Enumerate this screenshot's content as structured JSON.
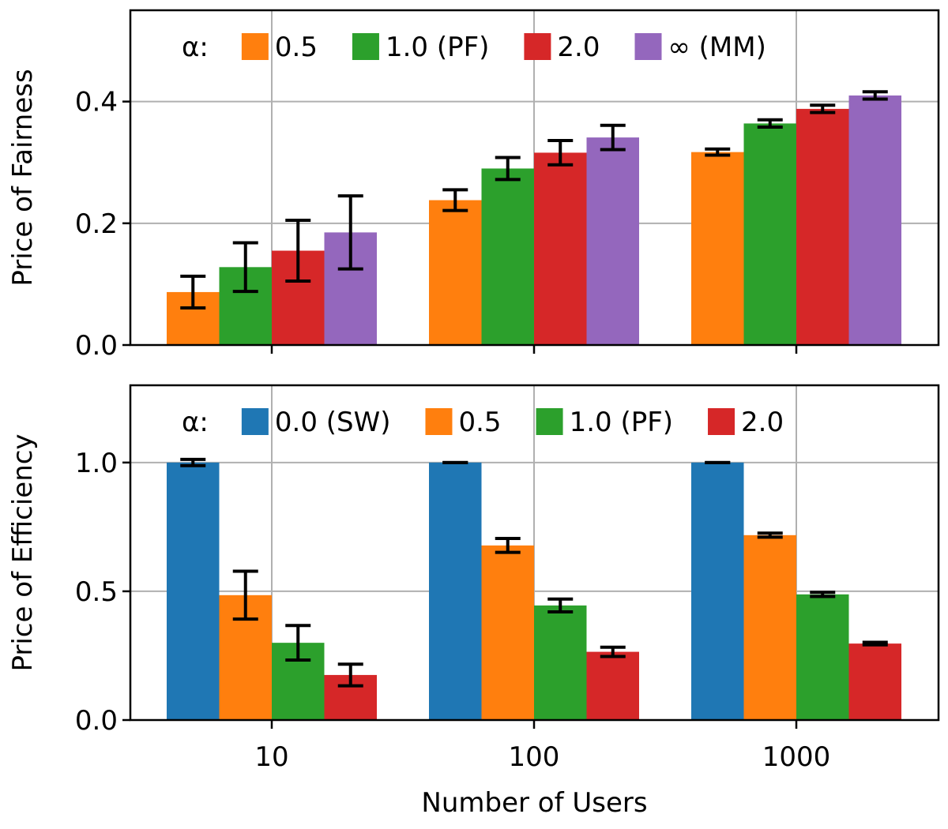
{
  "chart_data": [
    {
      "id": "fairness",
      "type": "bar",
      "title": "",
      "xlabel": "",
      "ylabel": "Price of Fairness",
      "categories": [
        "10",
        "100",
        "1000"
      ],
      "ylim": [
        0,
        0.55
      ],
      "yticks": [
        0.0,
        0.2,
        0.4
      ],
      "ytick_labels": [
        "0.0",
        "0.2",
        "0.4"
      ],
      "grid": true,
      "legend": {
        "position": "top",
        "title": "α:",
        "ncols": 4
      },
      "series": [
        {
          "name": "0.5",
          "color": "#ff7f0e",
          "values": [
            0.087,
            0.238,
            0.317
          ],
          "errors": [
            0.026,
            0.017,
            0.005
          ]
        },
        {
          "name": "1.0 (PF)",
          "color": "#2ca02c",
          "values": [
            0.128,
            0.29,
            0.364
          ],
          "errors": [
            0.04,
            0.018,
            0.006
          ]
        },
        {
          "name": "2.0",
          "color": "#d62728",
          "values": [
            0.155,
            0.316,
            0.388
          ],
          "errors": [
            0.05,
            0.02,
            0.006
          ]
        },
        {
          "name": "∞ (MM)",
          "color": "#9467bd",
          "values": [
            0.185,
            0.341,
            0.41
          ],
          "errors": [
            0.06,
            0.02,
            0.006
          ]
        }
      ]
    },
    {
      "id": "efficiency",
      "type": "bar",
      "title": "",
      "xlabel": "Number of Users",
      "ylabel": "Price of Efficiency",
      "categories": [
        "10",
        "100",
        "1000"
      ],
      "ylim": [
        0,
        1.3
      ],
      "yticks": [
        0.0,
        0.5,
        1.0
      ],
      "ytick_labels": [
        "0.0",
        "0.5",
        "1.0"
      ],
      "grid": true,
      "legend": {
        "position": "top",
        "title": "α:",
        "ncols": 4
      },
      "series": [
        {
          "name": "0.0 (SW)",
          "color": "#1f77b4",
          "values": [
            1.0,
            1.0,
            1.0
          ],
          "errors": [
            0.012,
            0.0,
            0.0
          ]
        },
        {
          "name": "0.5",
          "color": "#ff7f0e",
          "values": [
            0.485,
            0.678,
            0.718
          ],
          "errors": [
            0.093,
            0.027,
            0.008
          ]
        },
        {
          "name": "1.0 (PF)",
          "color": "#2ca02c",
          "values": [
            0.3,
            0.445,
            0.488
          ],
          "errors": [
            0.067,
            0.025,
            0.008
          ]
        },
        {
          "name": "2.0",
          "color": "#d62728",
          "values": [
            0.175,
            0.265,
            0.297
          ],
          "errors": [
            0.042,
            0.018,
            0.005
          ]
        }
      ]
    }
  ]
}
